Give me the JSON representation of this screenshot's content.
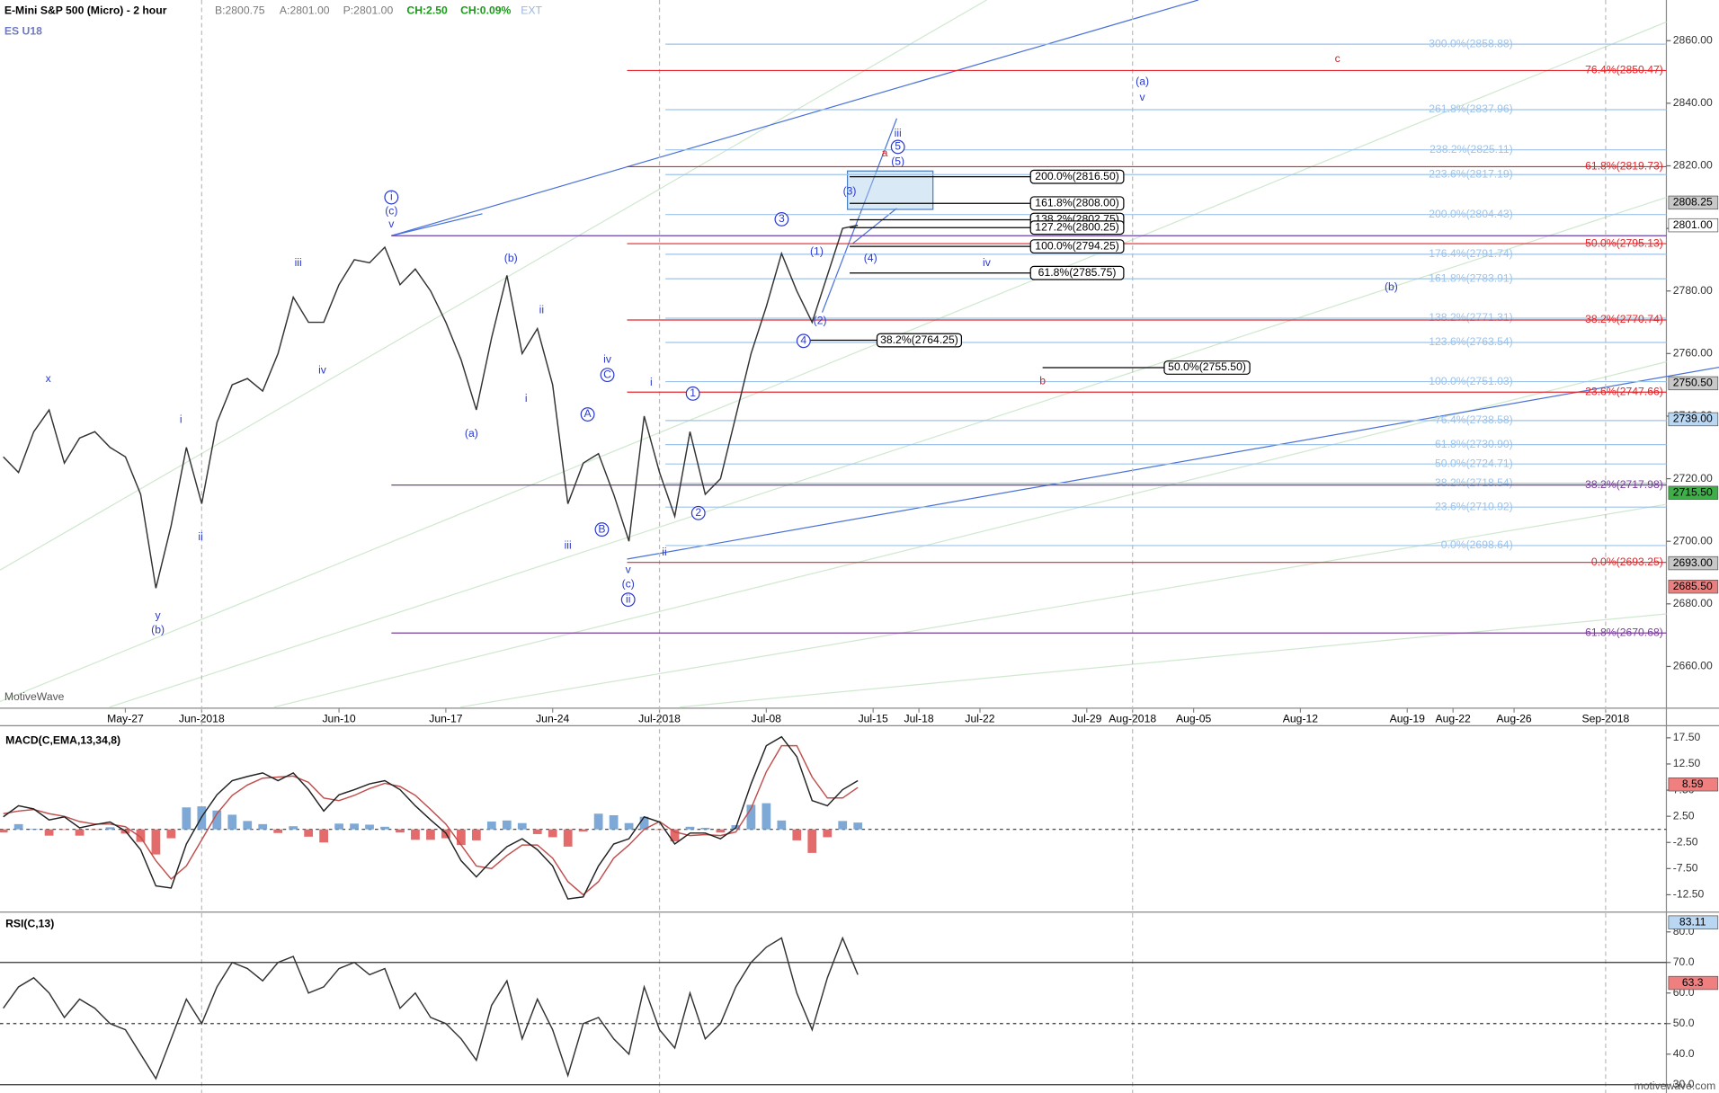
{
  "chart_data": [
    {
      "type": "line",
      "title": "E-Mini S&P 500 (Micro) - 2 hour",
      "quote": [
        "B:2800.75",
        "A:2801.00",
        "P:2801.00",
        "CH:2.50",
        "CH:0.09%",
        "EXT"
      ],
      "symbol": "ES U18",
      "watermark": "MotiveWave",
      "footer": "motivewave.com",
      "categories": [
        null,
        null,
        null,
        null,
        null,
        null,
        null,
        null,
        "May-27",
        null,
        null,
        null,
        null,
        "Jun-2018",
        null,
        null,
        null,
        null,
        null,
        null,
        null,
        null,
        "Jun-10",
        null,
        null,
        null,
        null,
        null,
        null,
        "Jun-17",
        null,
        null,
        null,
        null,
        null,
        null,
        "Jun-24",
        null,
        null,
        null,
        null,
        null,
        null,
        "Jul-2018",
        null,
        null,
        null,
        null,
        null,
        null,
        "Jul-08",
        null,
        null,
        null,
        null,
        null,
        null,
        "Jul-15",
        null,
        null,
        "Jul-18",
        null,
        null,
        null,
        "Jul-22",
        null,
        null,
        null,
        null,
        null,
        null,
        "Jul-29",
        null,
        null,
        "Aug-2018",
        null,
        null,
        null,
        "Aug-05",
        null,
        null,
        null,
        null,
        null,
        null,
        "Aug-12",
        null,
        null,
        null,
        null,
        null,
        null,
        "Aug-19",
        null,
        null,
        "Aug-22",
        null,
        null,
        null,
        "Aug-26",
        null,
        null,
        null,
        null,
        null,
        "Sep-2018",
        null,
        null
      ],
      "grid": true,
      "ylim": [
        2647,
        2873
      ],
      "yticks": [
        {
          "value": 2660,
          "label": "2660.00"
        },
        {
          "value": 2680,
          "label": "2680.00"
        },
        {
          "value": 2700,
          "label": "2700.00"
        },
        {
          "value": 2720,
          "label": "2720.00"
        },
        {
          "value": 2740,
          "label": "2740.00"
        },
        {
          "value": 2760,
          "label": "2760.00"
        },
        {
          "value": 2780,
          "label": "2780.00"
        },
        {
          "value": 2800,
          "label": "2800.00"
        },
        {
          "value": 2820,
          "label": "2820.00"
        },
        {
          "value": 2840,
          "label": "2840.00"
        },
        {
          "value": 2860,
          "label": "2860.00"
        }
      ],
      "series": [
        {
          "color": "#333333",
          "values": [
            2727,
            2722,
            2735,
            2742,
            2725,
            2733,
            2735,
            2730,
            2727,
            2715,
            2685,
            2705,
            2730,
            2712,
            2738,
            2750,
            2752,
            2748,
            2760,
            2778,
            2770,
            2770,
            2782,
            2790,
            2789,
            2794,
            2782,
            2787,
            2780,
            2770,
            2758,
            2742,
            2765,
            2785,
            2760,
            2768,
            2750,
            2712,
            2725,
            2728,
            2715,
            2700,
            2740,
            2722,
            2708,
            2735,
            2715,
            2720,
            2740,
            2760,
            2775,
            2792,
            2780,
            2770,
            2785,
            2800,
            2801,
            null,
            null,
            null,
            null,
            null,
            null,
            null,
            null,
            null,
            null,
            null,
            null,
            null,
            null,
            null,
            null,
            null,
            null,
            null,
            null,
            null,
            null,
            null,
            null,
            null,
            null,
            null,
            null,
            null,
            null,
            null,
            null,
            null,
            null,
            null,
            null,
            null,
            null,
            null,
            null,
            null,
            null,
            null,
            null,
            null,
            null,
            null,
            null,
            null,
            null,
            null
          ]
        }
      ],
      "extension_levels": {
        "color": "#9dc3ea",
        "levels": [
          {
            "label": "300.0%(2858.88)",
            "value": 2858.88
          },
          {
            "label": "261.8%(2837.96)",
            "value": 2837.96
          },
          {
            "label": "238.2%(2825.11)",
            "value": 2825.11
          },
          {
            "label": "223.6%(2817.19)",
            "value": 2817.19
          },
          {
            "label": "200.0%(2804.43)",
            "value": 2804.43
          },
          {
            "label": "176.4%(2791.74)",
            "value": 2791.74
          },
          {
            "label": "161.8%(2783.91)",
            "value": 2783.91
          },
          {
            "label": "138.2%(2771.31)",
            "value": 2771.31
          },
          {
            "label": "123.6%(2763.54)",
            "value": 2763.54
          },
          {
            "label": "100.0%(2751.03)",
            "value": 2751.03
          },
          {
            "label": "76.4%(2738.58)",
            "value": 2738.58
          },
          {
            "label": "61.8%(2730.90)",
            "value": 2730.9
          },
          {
            "label": "50.0%(2724.71)",
            "value": 2724.71
          },
          {
            "label": "38.2%(2718.54)",
            "value": 2718.54
          },
          {
            "label": "23.6%(2710.92)",
            "value": 2710.92
          },
          {
            "label": "0.0%(2698.64)",
            "value": 2698.64
          }
        ]
      },
      "retracement_levels": {
        "color": "#e3262b",
        "levels": [
          {
            "label": "76.4%(2850.47)",
            "value": 2850.47
          },
          {
            "label": "61.8%(2819.73)",
            "value": 2819.73
          },
          {
            "label": "50.0%(2795.13)",
            "value": 2795.13
          },
          {
            "label": "38.2%(2770.74)",
            "value": 2770.74
          },
          {
            "label": "23.6%(2747.66)",
            "value": 2747.66
          },
          {
            "label": "0.0%(2693.25)",
            "value": 2693.25
          }
        ]
      },
      "purple_levels": {
        "color": "#7b3d9c",
        "levels": [
          {
            "label": "38.2%(2717.98)",
            "value": 2717.98
          },
          {
            "label": "61.8%(2670.68)",
            "value": 2670.68
          }
        ]
      },
      "target_levels": {
        "color": "#000000",
        "levels": [
          {
            "label": "200.0%(2816.50)",
            "value": 2816.5
          },
          {
            "label": "161.8%(2808.00)",
            "value": 2808
          },
          {
            "label": "138.2%(2802.75)",
            "value": 2802.75
          },
          {
            "label": "127.2%(2800.25)",
            "value": 2800.25
          },
          {
            "label": "100.0%(2794.25)",
            "value": 2794.25
          },
          {
            "label": "61.8%(2785.75)",
            "value": 2785.75
          }
        ]
      },
      "support_levels": {
        "color": "#000000",
        "levels": [
          {
            "label": "38.2%(2764.25)",
            "value": 2764.25
          }
        ]
      },
      "projection_levels": {
        "color": "#000000",
        "levels": [
          {
            "label": "50.0%(2755.50)",
            "value": 2755.5
          }
        ]
      },
      "price_tags": [
        {
          "value": 2808.25,
          "label": "2808.25",
          "color": "#c8c8c8"
        },
        {
          "value": 2801,
          "label": "2801.00",
          "color": "#ffffff"
        },
        {
          "value": 2750.5,
          "label": "2750.50",
          "color": "#c8c8c8"
        },
        {
          "value": 2739,
          "label": "2739.00",
          "color": "#b9d7f2"
        },
        {
          "value": 2715.5,
          "label": "2715.50",
          "color": "#3fae49"
        },
        {
          "value": 2693,
          "label": "2693.00",
          "color": "#c8c8c8"
        },
        {
          "value": 2685.5,
          "label": "2685.50",
          "color": "#e88080"
        }
      ],
      "wave_labels": [
        "x",
        "y",
        "(b)",
        "i",
        "ii",
        "iii",
        "iv",
        "i",
        "(c)",
        "v",
        "(b)",
        "(a)",
        "ii",
        "i",
        "iii",
        "iv",
        "C",
        "A",
        "B",
        "v",
        "(c)",
        "ii",
        "i",
        "ii",
        "1",
        "2",
        "3",
        "(1)",
        "(2)",
        "4",
        "(3)",
        "(4)",
        "iii",
        "5",
        "(5)",
        "a",
        "iv",
        "(a)",
        "v",
        "(b)",
        "c",
        "b"
      ]
    },
    {
      "type": "line",
      "title": "MACD(C,EMA,13,34,8)",
      "ylim": [
        -15.4,
        19.6
      ],
      "yticks": [
        {
          "value": -12.5,
          "label": "-12.50"
        },
        {
          "value": -7.5,
          "label": "-7.50"
        },
        {
          "value": -2.5,
          "label": "-2.50"
        },
        {
          "value": 2.5,
          "label": "2.50"
        },
        {
          "value": 7.5,
          "label": "7.50"
        },
        {
          "value": 12.5,
          "label": "12.50"
        },
        {
          "value": 17.5,
          "label": "17.50"
        }
      ],
      "series": [
        {
          "draw": "bar",
          "color": "#7ea9d6",
          "negative_color": "#e36b6b",
          "values": [
            -0.6,
            1,
            0.1,
            -1.2,
            -0.1,
            -1.2,
            -0.1,
            0.4,
            -0.8,
            -2.4,
            -4.8,
            -1.7,
            4.2,
            4.4,
            3.6,
            2.8,
            1.6,
            1,
            -0.7,
            0.6,
            -1.4,
            -2.5,
            1.1,
            1.1,
            0.9,
            0.5,
            -0.6,
            -2,
            -2,
            -1.7,
            -3,
            -2.1,
            1.5,
            1.7,
            1.2,
            -0.9,
            -1.5,
            -3.3,
            -0.4,
            3,
            2.7,
            1.2,
            2.4,
            -0.1,
            -2.3,
            0.5,
            0.3,
            -0.6,
            0.8,
            4.7,
            5,
            1.7,
            -2.1,
            -4.5,
            -1.5,
            1.6,
            1.3,
            null,
            null,
            null,
            null,
            null,
            null,
            null,
            null,
            null,
            null,
            null,
            null,
            null,
            null,
            null,
            null,
            null,
            null,
            null,
            null,
            null,
            null,
            null,
            null,
            null,
            null,
            null,
            null,
            null,
            null,
            null,
            null,
            null,
            null,
            null,
            null,
            null,
            null,
            null,
            null,
            null,
            null,
            null,
            null,
            null,
            null,
            null,
            null,
            null,
            null,
            null
          ]
        },
        {
          "color": "#c0504d",
          "values": [
            3.0,
            3.5,
            3.8,
            3.0,
            2.5,
            1.5,
            1.0,
            1.0,
            0.5,
            -1.5,
            -6,
            -9.5,
            -7,
            -2,
            3,
            6.5,
            8.5,
            9.8,
            10,
            10.2,
            9,
            6,
            5.5,
            6.5,
            7.8,
            8.8,
            8.2,
            6.5,
            3.8,
            1,
            -3,
            -7,
            -7.5,
            -5,
            -3,
            -3,
            -5.5,
            -10,
            -12.5,
            -10,
            -5.5,
            -3,
            0,
            1.5,
            -0.5,
            -1.2,
            -1,
            -1.2,
            -0.5,
            4,
            11,
            16,
            16,
            10,
            6,
            6,
            8,
            null,
            null,
            null,
            null,
            null,
            null,
            null,
            null,
            null,
            null,
            null,
            null,
            null,
            null,
            null,
            null,
            null,
            null,
            null,
            null,
            null,
            null,
            null,
            null,
            null,
            null,
            null,
            null,
            null,
            null,
            null,
            null,
            null,
            null,
            null,
            null,
            null,
            null,
            null,
            null,
            null,
            null,
            null,
            null,
            null,
            null,
            null,
            null,
            null,
            null,
            null
          ]
        },
        {
          "color": "#222222",
          "values": [
            2.4,
            4.5,
            3.9,
            1.8,
            2.4,
            0.3,
            0.9,
            1.4,
            -0.3,
            -3.9,
            -10.8,
            -11.2,
            -2.8,
            2.4,
            6.6,
            9.3,
            10.1,
            10.8,
            9.3,
            10.8,
            7.6,
            3.5,
            6.6,
            7.6,
            8.7,
            9.3,
            7.6,
            4.5,
            1.8,
            -0.7,
            -6,
            -9.1,
            -6,
            -3.3,
            -1.8,
            -3.9,
            -7,
            -13.3,
            -12.9,
            -7,
            -2.8,
            -1.8,
            2.4,
            1.4,
            -2.8,
            -0.7,
            -0.7,
            -1.8,
            0.3,
            8.7,
            16,
            17.7,
            13.9,
            5.5,
            4.5,
            7.6,
            9.3,
            null,
            null,
            null,
            null,
            null,
            null,
            null,
            null,
            null,
            null,
            null,
            null,
            null,
            null,
            null,
            null,
            null,
            null,
            null,
            null,
            null,
            null,
            null,
            null,
            null,
            null,
            null,
            null,
            null,
            null,
            null,
            null,
            null,
            null,
            null,
            null,
            null,
            null,
            null,
            null,
            null,
            null,
            null,
            null,
            null,
            null,
            null,
            null,
            null,
            null,
            null
          ]
        }
      ],
      "price_tags": [
        {
          "value": 8.59,
          "label": "8.59",
          "color": "#f08080"
        }
      ]
    },
    {
      "type": "line",
      "title": "RSI(C,13)",
      "ylim": [
        28,
        85.4
      ],
      "yticks": [
        {
          "value": 30,
          "label": "30.0"
        },
        {
          "value": 40,
          "label": "40.0"
        },
        {
          "value": 50,
          "label": "50.0"
        },
        {
          "value": 60,
          "label": "60.0"
        },
        {
          "value": 70,
          "label": "70.0"
        },
        {
          "value": 80,
          "label": "80.0"
        }
      ],
      "reference_lines": [
        {
          "value": 70,
          "dashed": false
        },
        {
          "value": 50,
          "dashed": true
        },
        {
          "value": 30,
          "dashed": false
        }
      ],
      "series": [
        {
          "color": "#333333",
          "values": [
            55,
            62,
            65,
            60,
            52,
            58,
            55,
            50,
            48,
            40,
            32,
            45,
            58,
            50,
            62,
            70,
            68,
            64,
            70,
            72,
            60,
            62,
            68,
            70,
            66,
            68,
            55,
            60,
            52,
            50,
            45,
            38,
            56,
            64,
            45,
            58,
            48,
            33,
            50,
            52,
            45,
            40,
            62,
            48,
            42,
            60,
            45,
            50,
            62,
            70,
            75,
            78,
            60,
            48,
            65,
            78,
            66,
            null,
            null,
            null,
            null,
            null,
            null,
            null,
            null,
            null,
            null,
            null,
            null,
            null,
            null,
            null,
            null,
            null,
            null,
            null,
            null,
            null,
            null,
            null,
            null,
            null,
            null,
            null,
            null,
            null,
            null,
            null,
            null,
            null,
            null,
            null,
            null,
            null,
            null,
            null,
            null,
            null,
            null,
            null,
            null,
            null,
            null,
            null,
            null,
            null,
            null,
            null
          ]
        }
      ],
      "price_tags": [
        {
          "value": 83.11,
          "label": "83.11",
          "color": "#b9d7f2"
        },
        {
          "value": 63.3,
          "label": "63.3",
          "color": "#f08080"
        }
      ]
    }
  ]
}
